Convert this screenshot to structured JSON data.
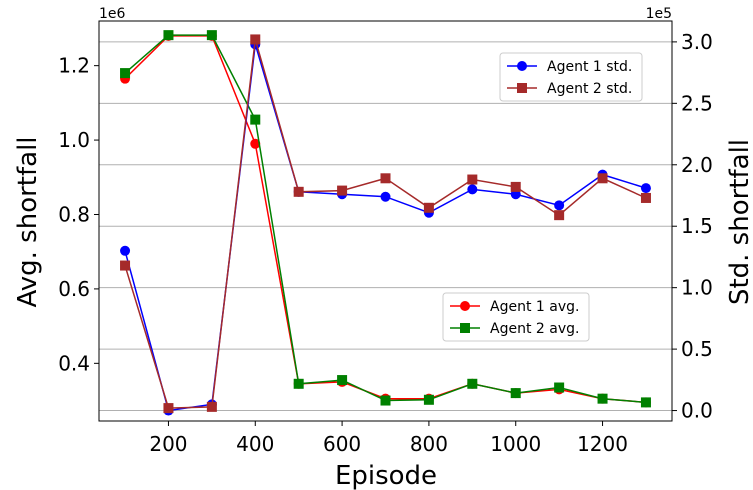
{
  "chart_data": {
    "type": "line",
    "xlabel": "Episode",
    "ylabel_left": "Avg. shortfall",
    "ylabel_right": "Std. shortfall",
    "left_offset_text": "1e6",
    "right_offset_text": "1e5",
    "xlim": [
      40,
      1360
    ],
    "ylim_left": [
      0.245,
      1.32
    ],
    "ylim_right": [
      -0.085,
      3.17
    ],
    "x_ticks": [
      200,
      400,
      600,
      800,
      1000,
      1200
    ],
    "x_tick_labels": [
      "200",
      "400",
      "600",
      "800",
      "1000",
      "1200"
    ],
    "y_left_ticks": [
      0.4,
      0.6,
      0.8,
      1.0,
      1.2
    ],
    "y_left_tick_labels": [
      "0.4",
      "0.6",
      "0.8",
      "1.0",
      "1.2"
    ],
    "y_right_ticks": [
      0.0,
      0.5,
      1.0,
      1.5,
      2.0,
      2.5,
      3.0
    ],
    "y_right_tick_labels": [
      "0.0",
      "0.5",
      "1.0",
      "1.5",
      "2.0",
      "2.5",
      "3.0"
    ],
    "grid": "horizontal lines at right-axis ticks",
    "x": [
      100,
      200,
      300,
      400,
      500,
      600,
      700,
      800,
      900,
      1000,
      1100,
      1200,
      1300
    ],
    "series": [
      {
        "name": "Agent 1 avg.",
        "axis": "left",
        "color": "#ff0000",
        "marker": "circle",
        "values": [
          1.165,
          1.28,
          1.28,
          0.99,
          0.345,
          0.35,
          0.305,
          0.305,
          0.345,
          0.32,
          0.33,
          0.305,
          0.295
        ]
      },
      {
        "name": "Agent 2 avg.",
        "axis": "left",
        "color": "#008000",
        "marker": "square",
        "values": [
          1.18,
          1.282,
          1.282,
          1.055,
          0.345,
          0.355,
          0.3,
          0.302,
          0.345,
          0.32,
          0.335,
          0.305,
          0.295
        ]
      },
      {
        "name": "Agent 1 std.",
        "axis": "right",
        "color": "#0000ff",
        "marker": "circle",
        "values": [
          1.3,
          0.0,
          0.05,
          2.98,
          1.78,
          1.76,
          1.74,
          1.61,
          1.8,
          1.76,
          1.67,
          1.92,
          1.81
        ]
      },
      {
        "name": "Agent 2 std.",
        "axis": "right",
        "color": "#a52a2a",
        "marker": "square",
        "values": [
          1.18,
          0.02,
          0.03,
          3.02,
          1.78,
          1.79,
          1.89,
          1.65,
          1.88,
          1.82,
          1.59,
          1.89,
          1.73
        ]
      }
    ],
    "legends": [
      {
        "placement": "upper right",
        "entries": [
          "Agent 1 std.",
          "Agent 2 std."
        ]
      },
      {
        "placement": "lower right",
        "entries": [
          "Agent 1 avg.",
          "Agent 2 avg."
        ]
      }
    ]
  }
}
